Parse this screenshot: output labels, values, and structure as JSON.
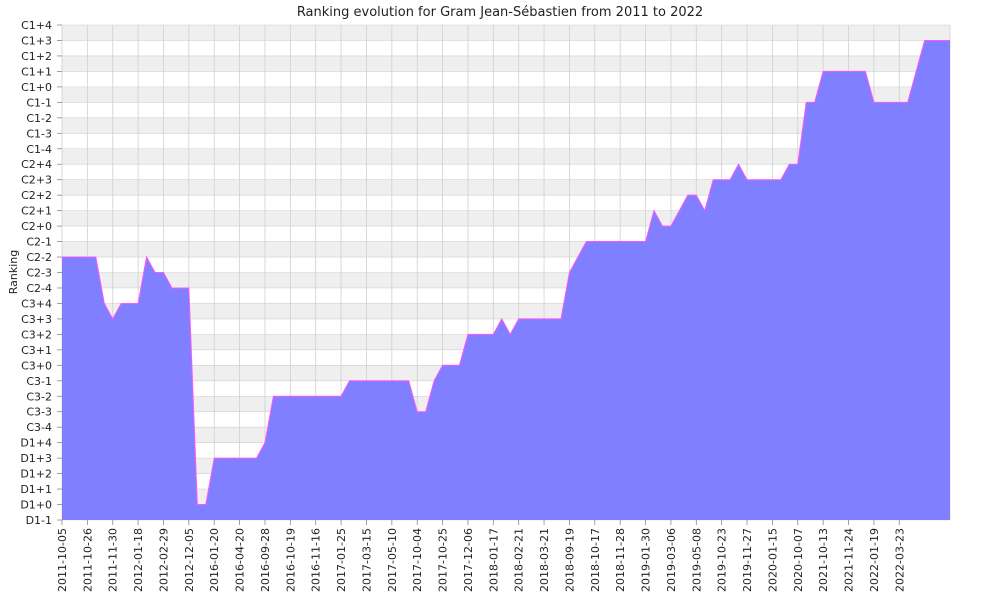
{
  "chart_data": {
    "type": "area",
    "title": "Ranking evolution for Gram Jean-Sébastien from 2011 to 2022",
    "xlabel": "",
    "ylabel": "Ranking",
    "y_categories": [
      "D1-1",
      "D1+0",
      "D1+1",
      "D1+2",
      "D1+3",
      "D1+4",
      "C3-4",
      "C3-3",
      "C3-2",
      "C3-1",
      "C3+0",
      "C3+1",
      "C3+2",
      "C3+3",
      "C3+4",
      "C2-4",
      "C2-3",
      "C2-2",
      "C2-1",
      "C2+0",
      "C2+1",
      "C2+2",
      "C2+3",
      "C2+4",
      "C1-4",
      "C1-3",
      "C1-2",
      "C1-1",
      "C1+0",
      "C1+1",
      "C1+2",
      "C1+3",
      "C1+4"
    ],
    "x_tick_labels": [
      "2011-10-05",
      "2011-10-26",
      "2011-11-30",
      "2012-01-18",
      "2012-02-29",
      "2012-12-05",
      "2016-01-20",
      "2016-04-20",
      "2016-09-28",
      "2016-10-19",
      "2016-11-16",
      "2017-01-25",
      "2017-03-15",
      "2017-05-10",
      "2017-10-04",
      "2017-10-25",
      "2017-12-06",
      "2018-01-17",
      "2018-02-21",
      "2018-03-21",
      "2018-09-19",
      "2018-10-17",
      "2018-11-28",
      "2019-01-30",
      "2019-03-06",
      "2019-05-08",
      "2019-10-23",
      "2019-11-27",
      "2020-01-15",
      "2020-10-07",
      "2021-10-13",
      "2021-11-24",
      "2022-01-19",
      "2022-03-23"
    ],
    "series": [
      {
        "name": "",
        "values": [
          "C2-2",
          "C2-2",
          "C2-2",
          "C2-2",
          "C2-2",
          "C3+4",
          "C3+3",
          "C3+4",
          "C3+4",
          "C3+4",
          "C2-2",
          "C2-3",
          "C2-3",
          "C2-4",
          "C2-4",
          "C2-4",
          "D1+0",
          "D1+0",
          "D1+3",
          "D1+3",
          "D1+3",
          "D1+3",
          "D1+3",
          "D1+3",
          "D1+4",
          "C3-2",
          "C3-2",
          "C3-2",
          "C3-2",
          "C3-2",
          "C3-2",
          "C3-2",
          "C3-2",
          "C3-2",
          "C3-1",
          "C3-1",
          "C3-1",
          "C3-1",
          "C3-1",
          "C3-1",
          "C3-1",
          "C3-1",
          "C3-3",
          "C3-3",
          "C3-1",
          "C3+0",
          "C3+0",
          "C3+0",
          "C3+2",
          "C3+2",
          "C3+2",
          "C3+2",
          "C3+3",
          "C3+2",
          "C3+3",
          "C3+3",
          "C3+3",
          "C3+3",
          "C3+3",
          "C3+3",
          "C2-3",
          "C2-2",
          "C2-1",
          "C2-1",
          "C2-1",
          "C2-1",
          "C2-1",
          "C2-1",
          "C2-1",
          "C2-1",
          "C2+1",
          "C2+0",
          "C2+0",
          "C2+1",
          "C2+2",
          "C2+2",
          "C2+1",
          "C2+3",
          "C2+3",
          "C2+3",
          "C2+4",
          "C2+3",
          "C2+3",
          "C2+3",
          "C2+3",
          "C2+3",
          "C2+4",
          "C2+4",
          "C1-1",
          "C1-1",
          "C1+1",
          "C1+1",
          "C1+1",
          "C1+1",
          "C1+1",
          "C1+1",
          "C1-1",
          "C1-1",
          "C1-1",
          "C1-1",
          "C1-1",
          "C1+1",
          "C1+3",
          "C1+3",
          "C1+3",
          "C1+3"
        ]
      }
    ],
    "x_tick_every": 3,
    "grid": true,
    "colors": {
      "fill": "#7f7fff",
      "line": "#ff55ff",
      "band_light": "#ffffff",
      "band_dark": "#efefef",
      "grid": "#d0d0d0",
      "text": "#222222"
    }
  }
}
